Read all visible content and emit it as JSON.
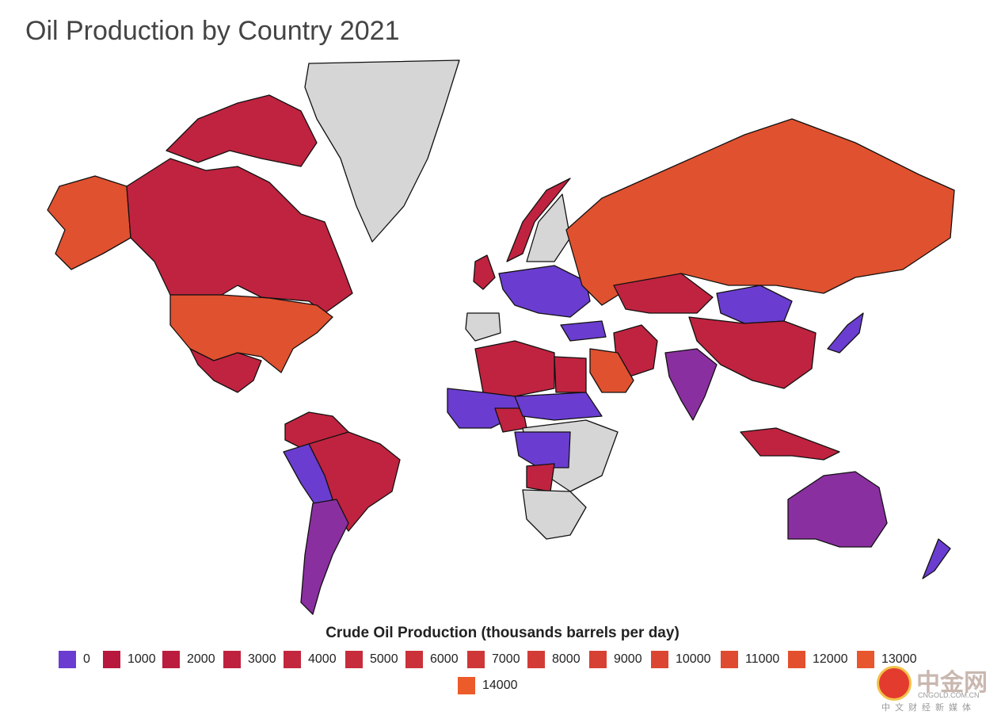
{
  "title": "Oil Production by Country 2021",
  "legend": {
    "title": "Crude Oil Production (thousands barrels per day)",
    "items": [
      {
        "label": "0",
        "color": "#6a3dd0"
      },
      {
        "label": "1000",
        "color": "#b8173e"
      },
      {
        "label": "2000",
        "color": "#bb1d3e"
      },
      {
        "label": "3000",
        "color": "#bf223e"
      },
      {
        "label": "4000",
        "color": "#c3273e"
      },
      {
        "label": "5000",
        "color": "#c72c3c"
      },
      {
        "label": "6000",
        "color": "#cb313a"
      },
      {
        "label": "7000",
        "color": "#cf3638"
      },
      {
        "label": "8000",
        "color": "#d33c36"
      },
      {
        "label": "9000",
        "color": "#d74134"
      },
      {
        "label": "10000",
        "color": "#db4632"
      },
      {
        "label": "11000",
        "color": "#df4b30"
      },
      {
        "label": "12000",
        "color": "#e3502e"
      },
      {
        "label": "13000",
        "color": "#e7562c"
      },
      {
        "label": "14000",
        "color": "#ec5b2a"
      }
    ]
  },
  "colors": {
    "no_data": "#d6d6d6",
    "low": "#6a3dd0",
    "mid": "#c0233f",
    "high": "#e0512f",
    "ocean": "#ffffff"
  },
  "watermark": {
    "brand": "中金网",
    "url": "CNGOLD.COM.CN",
    "tagline": "中文财经新媒体"
  }
}
